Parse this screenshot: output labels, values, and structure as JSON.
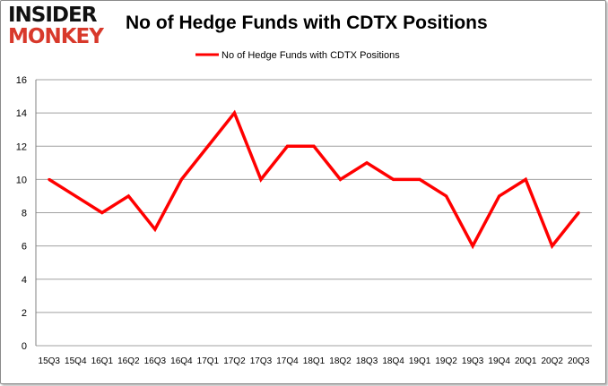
{
  "logo": {
    "line1": "INSIDER",
    "line2": "MONKEY"
  },
  "chart_data": {
    "type": "line",
    "title": "No of Hedge Funds with CDTX Positions",
    "xlabel": "",
    "ylabel": "",
    "categories": [
      "15Q3",
      "15Q4",
      "16Q1",
      "16Q2",
      "16Q3",
      "16Q4",
      "17Q1",
      "17Q2",
      "17Q3",
      "17Q4",
      "18Q1",
      "18Q2",
      "18Q3",
      "18Q4",
      "19Q1",
      "19Q2",
      "19Q3",
      "19Q4",
      "20Q1",
      "20Q2",
      "20Q3"
    ],
    "series": [
      {
        "name": "No of Hedge Funds with CDTX Positions",
        "color": "#ff0000",
        "values": [
          10,
          9,
          8,
          9,
          7,
          10,
          12,
          14,
          10,
          12,
          12,
          10,
          11,
          10,
          10,
          9,
          6,
          9,
          10,
          6,
          8
        ]
      }
    ],
    "ylim": [
      0,
      16
    ],
    "yticks": [
      0,
      2,
      4,
      6,
      8,
      10,
      12,
      14,
      16
    ],
    "grid": true,
    "legend": "top-center"
  }
}
